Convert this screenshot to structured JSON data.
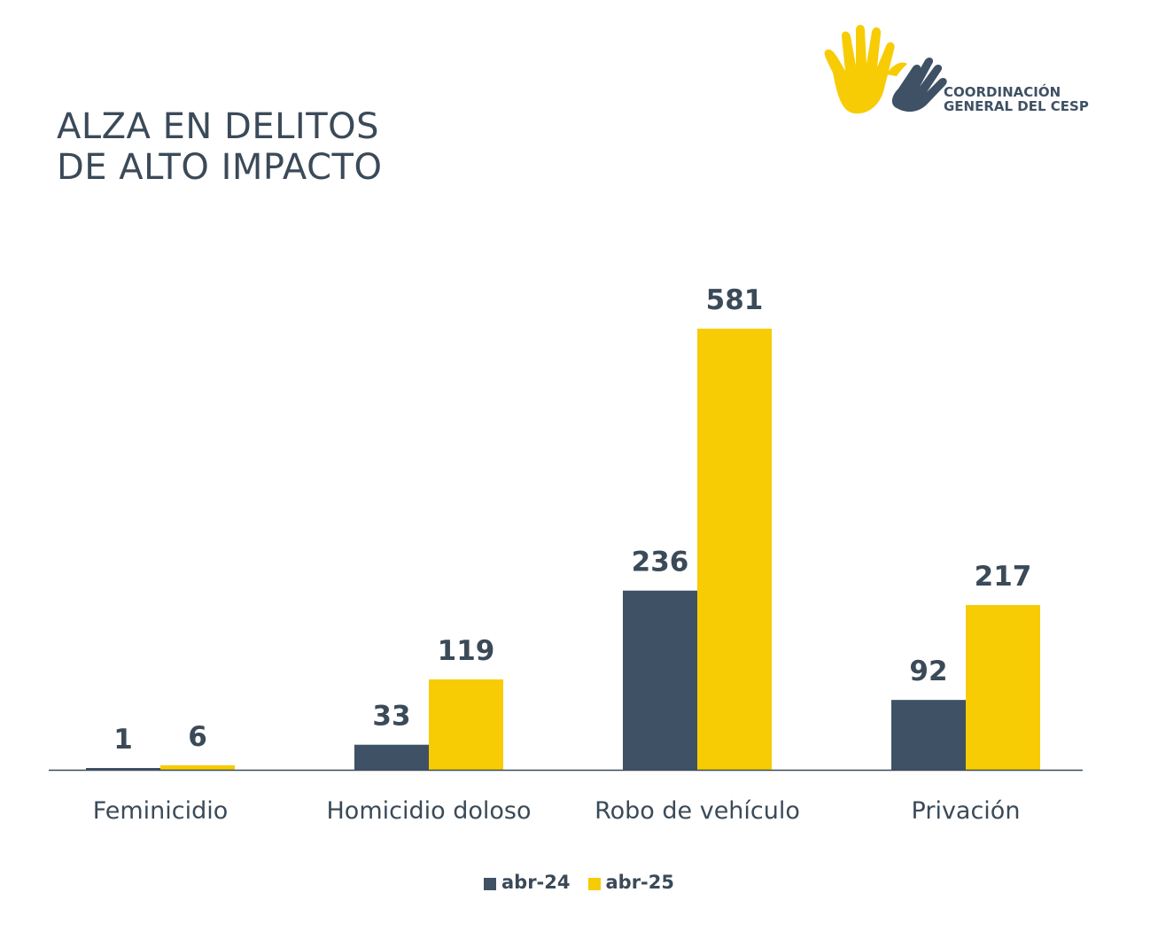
{
  "title_lines": [
    "ALZA EN DELITOS",
    "DE ALTO IMPACTO"
  ],
  "logo": {
    "line1": "COORDINACIÓN",
    "line2": "GENERAL DEL CESP",
    "icon": "hands-dove-icon"
  },
  "colors": {
    "abr24": "#3f5164",
    "abr25": "#f7cc05",
    "text": "#3b4a58",
    "axis": "#3b4a58"
  },
  "chart_data": {
    "type": "bar",
    "title": "ALZA EN DELITOS DE ALTO IMPACTO",
    "categories": [
      "Feminicidio",
      "Homicidio doloso",
      "Robo de vehículo",
      "Privación"
    ],
    "series": [
      {
        "name": "abr-24",
        "values": [
          1,
          33,
          236,
          92
        ]
      },
      {
        "name": "abr-25",
        "values": [
          6,
          119,
          581,
          217
        ]
      }
    ],
    "ylim": [
      0,
      581
    ],
    "grid": false,
    "legend_position": "bottom-center",
    "data_labels": true
  }
}
